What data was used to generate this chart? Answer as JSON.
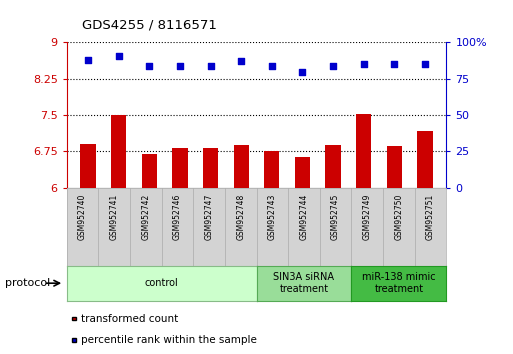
{
  "title": "GDS4255 / 8116571",
  "samples": [
    "GSM952740",
    "GSM952741",
    "GSM952742",
    "GSM952746",
    "GSM952747",
    "GSM952748",
    "GSM952743",
    "GSM952744",
    "GSM952745",
    "GSM952749",
    "GSM952750",
    "GSM952751"
  ],
  "transformed_count": [
    6.9,
    7.5,
    6.7,
    6.82,
    6.82,
    6.88,
    6.75,
    6.63,
    6.88,
    7.52,
    6.87,
    7.18
  ],
  "percentile_rank": [
    88,
    91,
    84,
    84,
    84,
    87,
    84,
    80,
    84,
    85,
    85,
    85
  ],
  "left_ylim": [
    6.0,
    9.0
  ],
  "left_yticks": [
    6.0,
    6.75,
    7.5,
    8.25,
    9.0
  ],
  "left_yticklabels": [
    "6",
    "6.75",
    "7.5",
    "8.25",
    "9"
  ],
  "right_ylim": [
    0,
    100
  ],
  "right_yticks": [
    0,
    25,
    50,
    75,
    100
  ],
  "right_yticklabels": [
    "0",
    "25",
    "50",
    "75",
    "100%"
  ],
  "bar_color": "#cc0000",
  "dot_color": "#0000cc",
  "bar_bottom": 6.0,
  "groups": [
    {
      "label": "control",
      "start": 0,
      "end": 5,
      "color": "#ccffcc",
      "edge_color": "#88bb88"
    },
    {
      "label": "SIN3A siRNA\ntreatment",
      "start": 6,
      "end": 8,
      "color": "#99dd99",
      "edge_color": "#55aa55"
    },
    {
      "label": "miR-138 mimic\ntreatment",
      "start": 9,
      "end": 11,
      "color": "#44bb44",
      "edge_color": "#229922"
    }
  ],
  "legend_labels": [
    "transformed count",
    "percentile rank within the sample"
  ],
  "legend_colors": [
    "#cc0000",
    "#0000cc"
  ],
  "protocol_label": "protocol"
}
